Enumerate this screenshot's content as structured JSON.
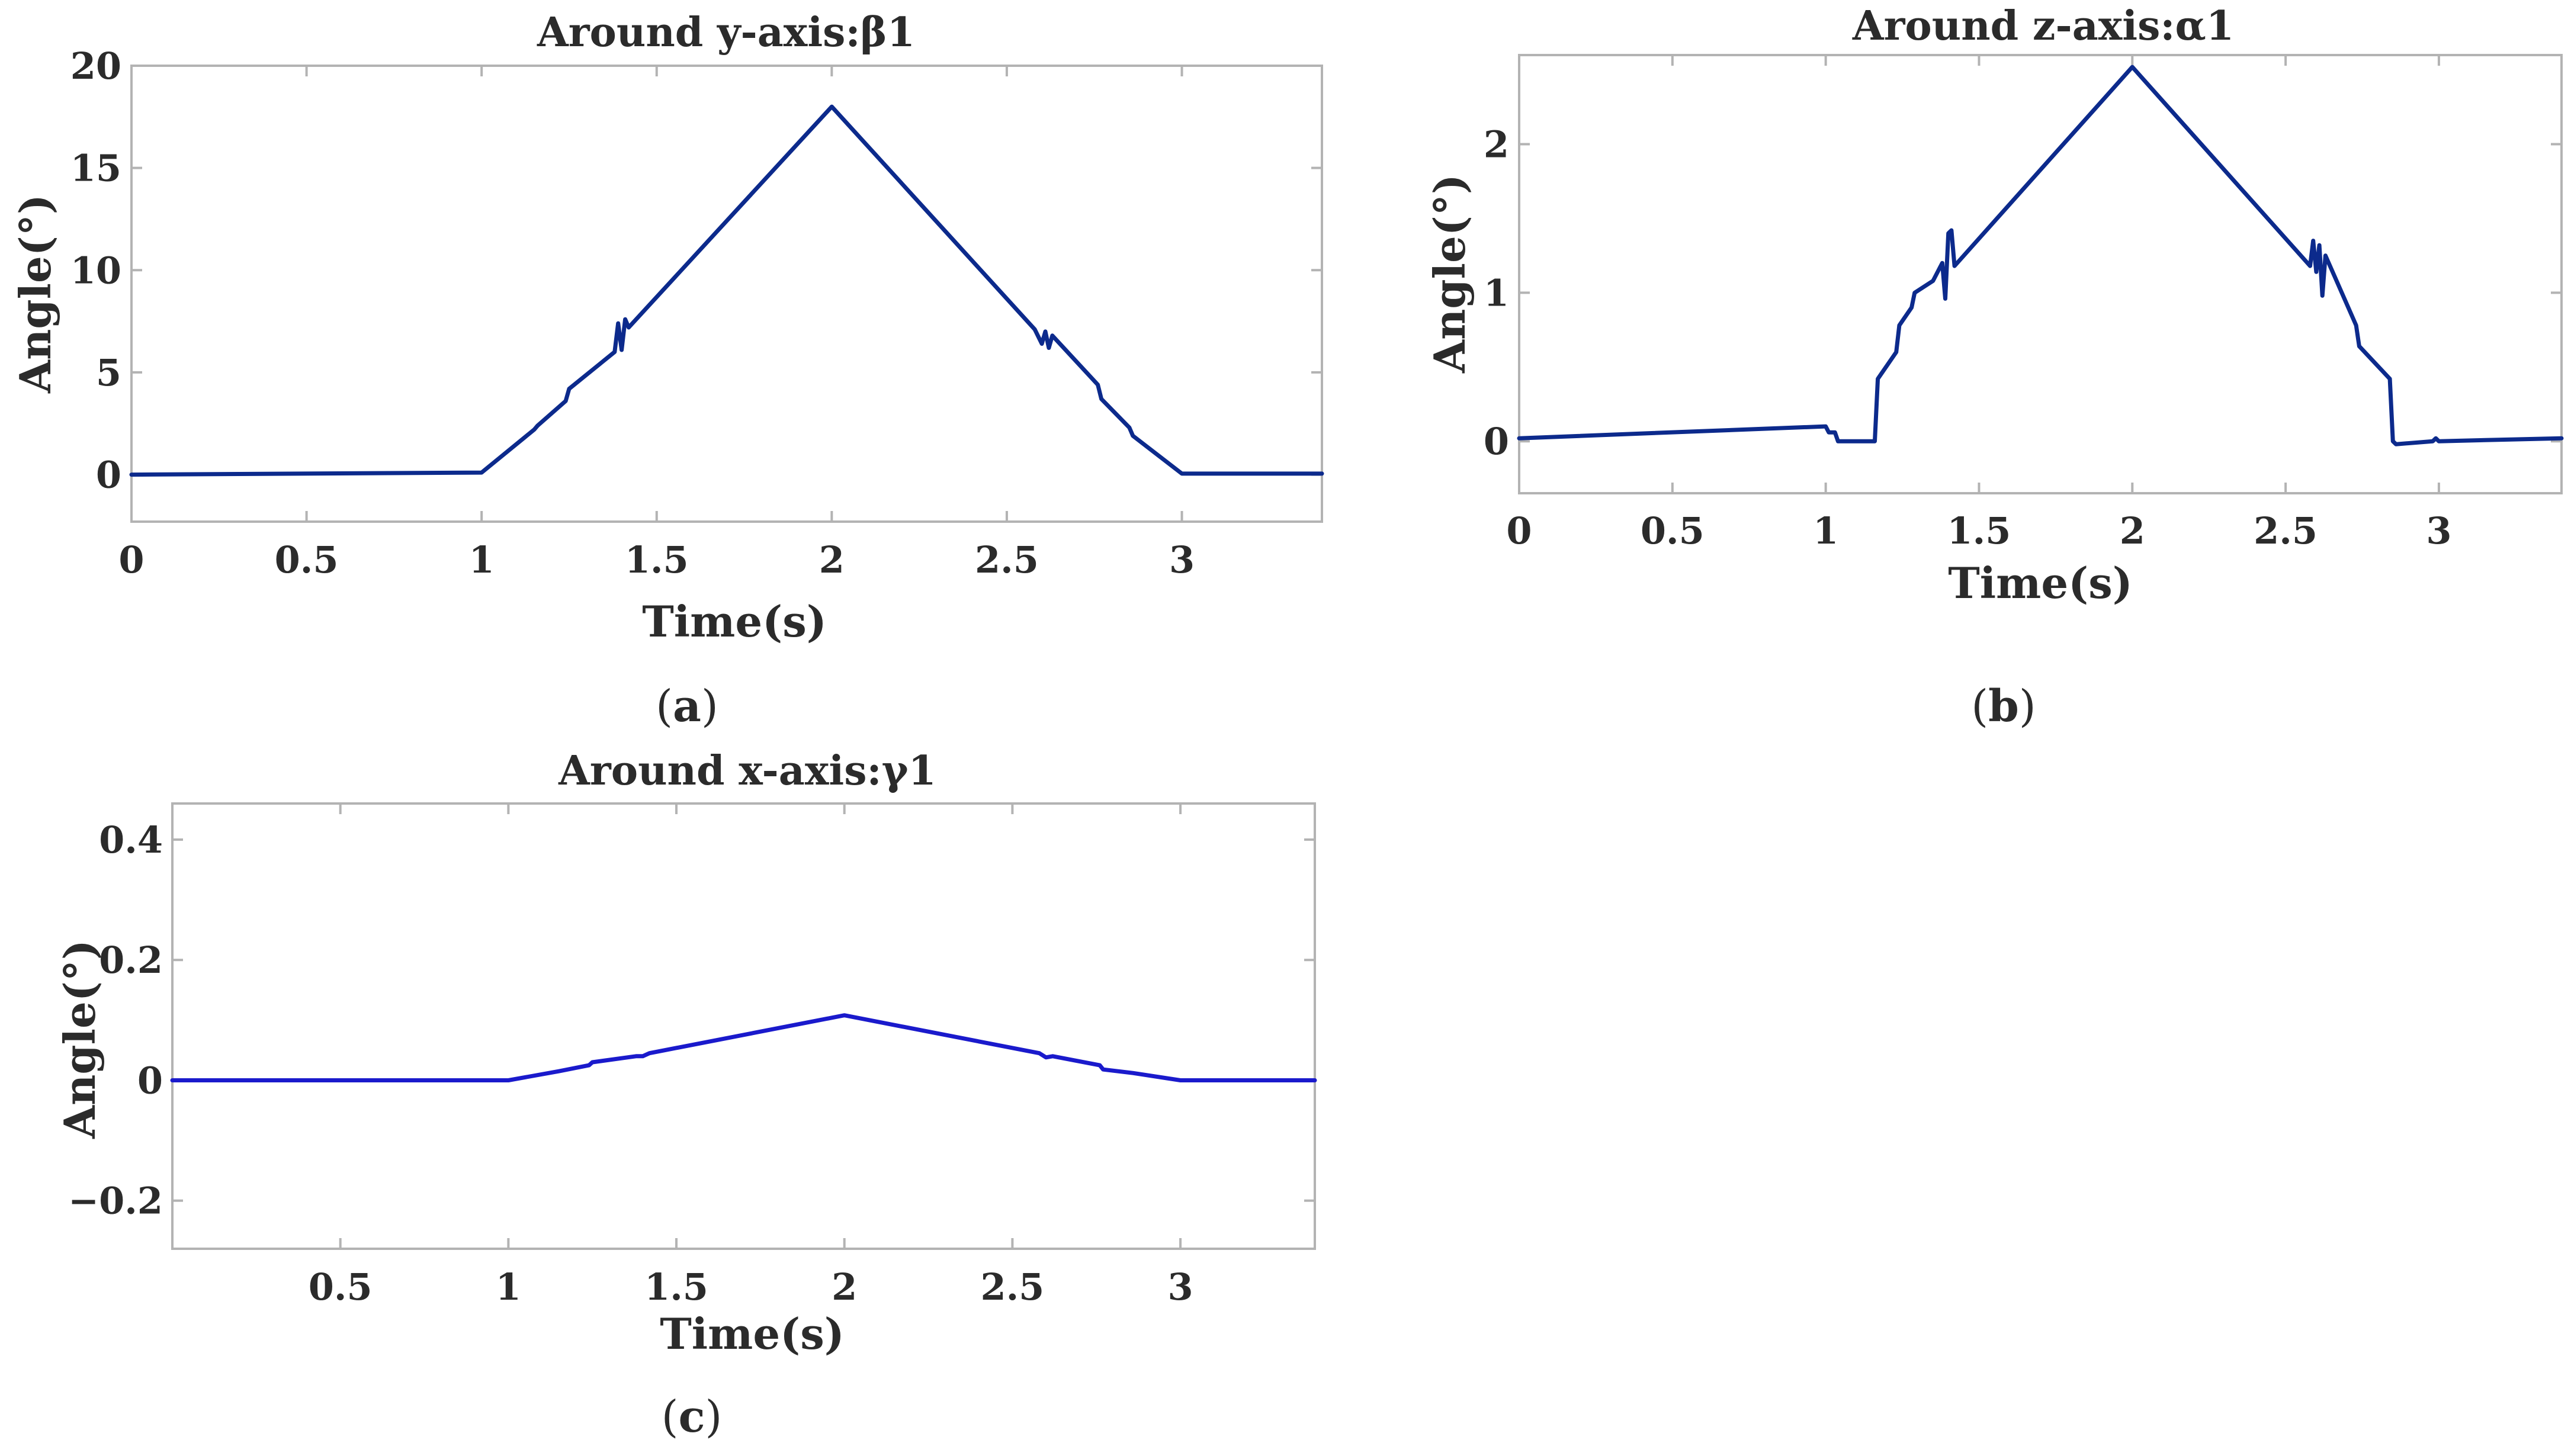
{
  "chart_data": [
    {
      "id": "a",
      "type": "line",
      "title": "Around y-axis:β1",
      "xlabel": "Time(s)",
      "ylabel": "Angle(°)",
      "caption_label": "a",
      "xlim": [
        0,
        3.4
      ],
      "ylim": [
        -2.3,
        20
      ],
      "xticks": [
        0,
        0.5,
        1,
        1.5,
        2,
        2.5,
        3
      ],
      "xtick_labels": [
        "0",
        "0.5",
        "1",
        "1.5",
        "2",
        "2.5",
        "3"
      ],
      "yticks": [
        0,
        5,
        10,
        15,
        20
      ],
      "ytick_labels": [
        "0",
        "5",
        "10",
        "15",
        "20"
      ],
      "color": "#0c2a8c",
      "series": [
        {
          "name": "β1",
          "x": [
            0,
            1.0,
            1.15,
            1.16,
            1.24,
            1.25,
            1.38,
            1.39,
            1.4,
            1.41,
            1.42,
            2.0,
            2.58,
            2.6,
            2.61,
            2.62,
            2.63,
            2.76,
            2.77,
            2.85,
            2.86,
            3.0,
            3.4
          ],
          "y": [
            0,
            0.1,
            2.2,
            2.4,
            3.6,
            4.2,
            6.0,
            7.4,
            6.1,
            7.6,
            7.2,
            18.0,
            7.1,
            6.4,
            7.0,
            6.2,
            6.8,
            4.4,
            3.7,
            2.3,
            1.9,
            0.05,
            0.05
          ]
        }
      ]
    },
    {
      "id": "b",
      "type": "line",
      "title": "Around z-axis:α1",
      "xlabel": "Time(s)",
      "ylabel": "Angle(°)",
      "caption_label": "b",
      "xlim": [
        0,
        3.4
      ],
      "ylim": [
        -0.35,
        2.6
      ],
      "xticks": [
        0,
        0.5,
        1,
        1.5,
        2,
        2.5,
        3
      ],
      "xtick_labels": [
        "0",
        "0.5",
        "1",
        "1.5",
        "2",
        "2.5",
        "3"
      ],
      "yticks": [
        0,
        1,
        2
      ],
      "ytick_labels": [
        "0",
        "1",
        "2"
      ],
      "color": "#0c2a8c",
      "series": [
        {
          "name": "α1",
          "x": [
            0,
            1.0,
            1.01,
            1.03,
            1.04,
            1.16,
            1.17,
            1.23,
            1.24,
            1.28,
            1.29,
            1.35,
            1.38,
            1.39,
            1.4,
            1.41,
            1.42,
            2.0,
            2.58,
            2.59,
            2.6,
            2.61,
            2.62,
            2.63,
            2.73,
            2.74,
            2.84,
            2.85,
            2.86,
            2.98,
            2.99,
            3.0,
            3.4
          ],
          "y": [
            0.02,
            0.1,
            0.06,
            0.06,
            0.0,
            0.0,
            0.42,
            0.6,
            0.78,
            0.9,
            1.0,
            1.08,
            1.2,
            0.96,
            1.4,
            1.42,
            1.18,
            2.52,
            1.18,
            1.35,
            1.14,
            1.32,
            0.98,
            1.25,
            0.78,
            0.64,
            0.42,
            0.0,
            -0.02,
            0.0,
            0.02,
            0.0,
            0.02
          ]
        }
      ]
    },
    {
      "id": "c",
      "type": "line",
      "title": "Around x-axis:γ1",
      "xlabel": "Time(s)",
      "ylabel": "Angle(°)",
      "caption_label": "c",
      "xlim": [
        0,
        3.4
      ],
      "ylim": [
        -0.28,
        0.46
      ],
      "xticks": [
        0.5,
        1,
        1.5,
        2,
        2.5,
        3
      ],
      "xtick_labels": [
        "0.5",
        "1",
        "1.5",
        "2",
        "2.5",
        "3"
      ],
      "yticks": [
        -0.2,
        0,
        0.2,
        0.4
      ],
      "ytick_labels": [
        "−0.2",
        "0",
        "0.2",
        "0.4"
      ],
      "color": "#1a1acc",
      "series": [
        {
          "name": "γ1",
          "x": [
            0,
            1.0,
            1.15,
            1.24,
            1.25,
            1.38,
            1.4,
            1.42,
            2.0,
            2.58,
            2.6,
            2.62,
            2.76,
            2.77,
            2.86,
            3.0,
            3.4
          ],
          "y": [
            0,
            0,
            0.015,
            0.025,
            0.03,
            0.04,
            0.04,
            0.045,
            0.108,
            0.045,
            0.038,
            0.04,
            0.025,
            0.018,
            0.012,
            0.0,
            0.0
          ]
        }
      ]
    }
  ]
}
